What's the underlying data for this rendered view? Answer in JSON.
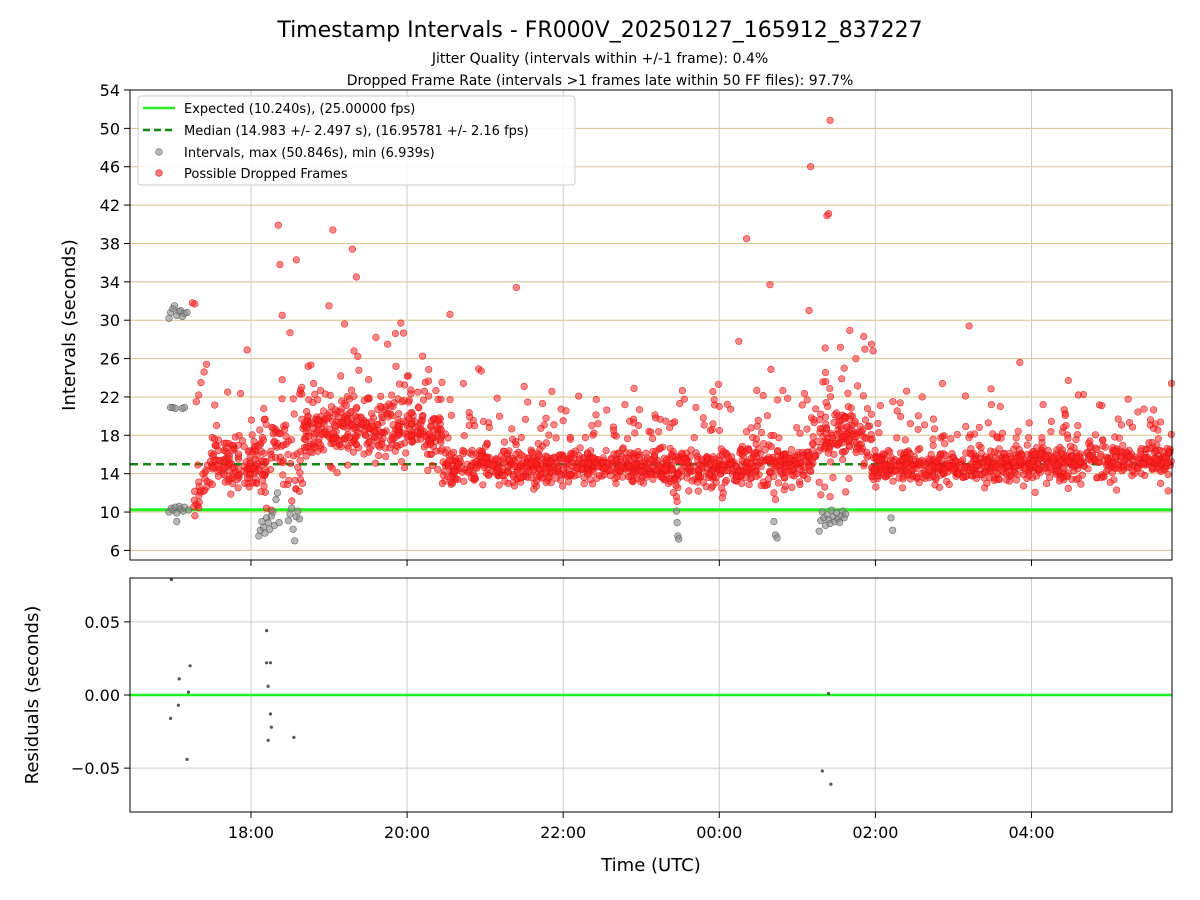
{
  "chart_data": [
    {
      "type": "scatter",
      "title": "Timestamp Intervals - FR000V_20250127_165912_837227",
      "subtitle_lines": [
        "Jitter Quality (intervals within +/-1 frame): 0.4%",
        "Dropped Frame Rate (intervals >1 frames late within 50 FF files): 97.7%"
      ],
      "ylabel": "Intervals (seconds)",
      "xlim_hours": [
        16.45,
        29.8
      ],
      "ylim": [
        5,
        54
      ],
      "yticks": [
        6,
        10,
        14,
        18,
        22,
        26,
        30,
        34,
        38,
        42,
        46,
        50,
        54
      ],
      "xticks_hours": [
        18,
        20,
        22,
        24,
        26,
        28
      ],
      "grid": true,
      "legend_position": "top-left",
      "colors": {
        "expected": "#22ee22",
        "median": "#118811",
        "intervals": "#888888",
        "dropped": "#ff2222",
        "hgrid": "#d9c48a",
        "vgrid": "#cccccc"
      },
      "expected_line": {
        "y": 10.24,
        "legend": "Expected (10.240s), (25.00000 fps)"
      },
      "median_line": {
        "y": 14.983,
        "legend": "Median (14.983 +/- 2.497 s), (16.95781 +/- 2.16 fps)"
      },
      "series": [
        {
          "name": "Intervals, max (50.846s), min (6.939s)",
          "points": [
            [
              16.95,
              30.2
            ],
            [
              16.97,
              30.8
            ],
            [
              17.0,
              31.2
            ],
            [
              17.02,
              31.5
            ],
            [
              17.05,
              30.5
            ],
            [
              17.08,
              30.9
            ],
            [
              17.1,
              31.0
            ],
            [
              17.12,
              30.4
            ],
            [
              17.15,
              30.7
            ],
            [
              17.18,
              30.8
            ],
            [
              16.97,
              20.9
            ],
            [
              17.0,
              20.9
            ],
            [
              17.03,
              20.8
            ],
            [
              17.12,
              20.8
            ],
            [
              17.15,
              20.9
            ],
            [
              16.95,
              10.0
            ],
            [
              16.98,
              10.4
            ],
            [
              17.0,
              10.2
            ],
            [
              17.03,
              10.5
            ],
            [
              17.05,
              9.9
            ],
            [
              17.08,
              10.6
            ],
            [
              17.1,
              10.3
            ],
            [
              17.13,
              10.1
            ],
            [
              17.15,
              10.5
            ],
            [
              17.2,
              10.2
            ],
            [
              17.05,
              9.0
            ],
            [
              18.1,
              7.5
            ],
            [
              18.12,
              8.1
            ],
            [
              18.14,
              9.0
            ],
            [
              18.16,
              8.4
            ],
            [
              18.18,
              7.8
            ],
            [
              18.2,
              9.4
            ],
            [
              18.22,
              8.9
            ],
            [
              18.24,
              8.2
            ],
            [
              18.26,
              9.6
            ],
            [
              18.28,
              10.0
            ],
            [
              18.3,
              8.6
            ],
            [
              18.32,
              11.3
            ],
            [
              18.34,
              12.0
            ],
            [
              18.36,
              8.9
            ],
            [
              18.48,
              9.1
            ],
            [
              18.5,
              9.8
            ],
            [
              18.52,
              10.4
            ],
            [
              18.54,
              8.2
            ],
            [
              18.56,
              7.0
            ],
            [
              18.58,
              9.5
            ],
            [
              18.6,
              10.1
            ],
            [
              18.62,
              9.3
            ],
            [
              23.45,
              10.1
            ],
            [
              23.46,
              8.9
            ],
            [
              23.47,
              7.5
            ],
            [
              23.48,
              7.2
            ],
            [
              24.7,
              9.0
            ],
            [
              24.72,
              7.6
            ],
            [
              24.74,
              7.3
            ],
            [
              25.28,
              8.0
            ],
            [
              25.3,
              9.1
            ],
            [
              25.32,
              10.0
            ],
            [
              25.34,
              9.4
            ],
            [
              25.36,
              8.6
            ],
            [
              25.38,
              9.7
            ],
            [
              25.4,
              9.2
            ],
            [
              25.42,
              8.8
            ],
            [
              25.44,
              10.2
            ],
            [
              25.46,
              9.5
            ],
            [
              25.48,
              9.0
            ],
            [
              25.5,
              9.9
            ],
            [
              25.52,
              9.3
            ],
            [
              25.54,
              8.9
            ],
            [
              25.56,
              9.6
            ],
            [
              25.58,
              10.1
            ],
            [
              25.6,
              9.4
            ],
            [
              25.62,
              9.8
            ],
            [
              26.2,
              9.4
            ],
            [
              26.22,
              8.1
            ]
          ]
        },
        {
          "name": "Possible Dropped Frames",
          "bands": [
            [
              17.25,
              17.35,
              10.3,
              12.5,
              1.0,
              12
            ],
            [
              17.35,
              17.5,
              12.5,
              15.0,
              1.0,
              14
            ],
            [
              17.5,
              18.2,
              15.0,
              15.0,
              1.3,
              140
            ],
            [
              18.25,
              18.45,
              17.5,
              17.5,
              2.0,
              30
            ],
            [
              18.45,
              18.65,
              15.5,
              15.5,
              2.5,
              20
            ],
            [
              18.65,
              19.4,
              18.2,
              18.6,
              1.5,
              160
            ],
            [
              19.4,
              20.0,
              18.6,
              18.2,
              1.4,
              110
            ],
            [
              20.0,
              20.45,
              18.4,
              17.8,
              1.3,
              90
            ],
            [
              20.45,
              22.0,
              14.8,
              14.8,
              1.0,
              300
            ],
            [
              22.0,
              24.0,
              14.8,
              14.5,
              0.9,
              380
            ],
            [
              24.0,
              25.2,
              14.8,
              15.0,
              1.0,
              240
            ],
            [
              25.2,
              25.6,
              17.5,
              17.8,
              1.4,
              70
            ],
            [
              25.6,
              25.95,
              18.5,
              17.6,
              1.3,
              60
            ],
            [
              25.95,
              27.5,
              14.8,
              14.6,
              0.9,
              320
            ],
            [
              27.5,
              29.8,
              15.0,
              15.4,
              0.9,
              460
            ]
          ],
          "scatter_count": 260,
          "points": [
            [
              17.25,
              31.8
            ],
            [
              17.28,
              31.7
            ],
            [
              17.3,
              21.5
            ],
            [
              17.33,
              22.2
            ],
            [
              17.36,
              23.5
            ],
            [
              17.4,
              24.6
            ],
            [
              17.43,
              25.4
            ],
            [
              17.7,
              22.5
            ],
            [
              17.95,
              26.9
            ],
            [
              18.35,
              39.9
            ],
            [
              18.37,
              35.8
            ],
            [
              18.4,
              30.5
            ],
            [
              18.5,
              28.7
            ],
            [
              18.58,
              36.3
            ],
            [
              18.65,
              23.0
            ],
            [
              19.0,
              31.5
            ],
            [
              19.05,
              39.4
            ],
            [
              19.2,
              29.6
            ],
            [
              19.3,
              37.4
            ],
            [
              19.35,
              34.5
            ],
            [
              19.32,
              26.8
            ],
            [
              19.6,
              28.2
            ],
            [
              19.75,
              27.5
            ],
            [
              19.85,
              28.6
            ],
            [
              19.92,
              29.7
            ],
            [
              20.55,
              30.6
            ],
            [
              20.95,
              24.7
            ],
            [
              21.4,
              33.4
            ],
            [
              21.5,
              23.1
            ],
            [
              23.7,
              20.9
            ],
            [
              24.0,
              21.0
            ],
            [
              24.25,
              27.8
            ],
            [
              24.35,
              38.5
            ],
            [
              24.65,
              33.7
            ],
            [
              25.15,
              31.0
            ],
            [
              25.17,
              46.0
            ],
            [
              25.38,
              40.9
            ],
            [
              25.4,
              41.1
            ],
            [
              25.42,
              50.846
            ],
            [
              25.6,
              25.0
            ],
            [
              25.75,
              26.0
            ],
            [
              25.85,
              28.3
            ],
            [
              25.95,
              27.5
            ],
            [
              25.97,
              26.8
            ],
            [
              26.4,
              22.6
            ],
            [
              26.6,
              22.0
            ],
            [
              27.2,
              29.4
            ],
            [
              27.6,
              21.0
            ],
            [
              27.85,
              25.6
            ],
            [
              28.6,
              22.2
            ],
            [
              28.9,
              21.1
            ],
            [
              17.32,
              14.9
            ],
            [
              18.2,
              10.4
            ],
            [
              18.26,
              10.2
            ],
            [
              23.45,
              11.6
            ],
            [
              23.46,
              11.1
            ],
            [
              24.7,
              12.0
            ],
            [
              24.72,
              11.3
            ],
            [
              25.28,
              13.1
            ],
            [
              25.3,
              11.8
            ],
            [
              25.35,
              12.6
            ],
            [
              25.42,
              11.6
            ],
            [
              25.62,
              12.1
            ],
            [
              25.66,
              13.5
            ],
            [
              29.75,
              12.2
            ]
          ]
        }
      ],
      "legend": {
        "expected": "Expected (10.240s), (25.00000 fps)",
        "median": "Median (14.983 +/- 2.497 s), (16.95781 +/- 2.16 fps)",
        "intervals": "Intervals, max (50.846s), min (6.939s)",
        "dropped": "Possible Dropped Frames"
      }
    },
    {
      "type": "scatter",
      "title": "",
      "xlabel": "Time (UTC)",
      "ylabel": "Residuals (seconds)",
      "xlim_hours": [
        16.45,
        29.8
      ],
      "ylim": [
        -0.08,
        0.08
      ],
      "yticks": [
        -0.05,
        0.0,
        0.05
      ],
      "ytick_labels": [
        "−0.05",
        "0.00",
        "0.05"
      ],
      "xticks_hours": [
        18,
        20,
        22,
        24,
        26,
        28
      ],
      "xtick_labels": [
        "18:00",
        "20:00",
        "22:00",
        "00:00",
        "02:00",
        "04:00"
      ],
      "grid": true,
      "zero_line_color": "#22ee22",
      "series": [
        {
          "name": "",
          "points": [
            [
              16.98,
              0.079
            ],
            [
              16.97,
              -0.016
            ],
            [
              17.08,
              0.011
            ],
            [
              17.07,
              -0.007
            ],
            [
              17.2,
              0.002
            ],
            [
              17.22,
              0.02
            ],
            [
              17.18,
              -0.044
            ],
            [
              18.2,
              0.044
            ],
            [
              18.2,
              0.022
            ],
            [
              18.25,
              0.022
            ],
            [
              18.22,
              0.006
            ],
            [
              18.25,
              -0.013
            ],
            [
              18.26,
              -0.022
            ],
            [
              18.22,
              -0.031
            ],
            [
              18.55,
              -0.029
            ],
            [
              25.4,
              0.001
            ],
            [
              25.32,
              -0.052
            ],
            [
              25.43,
              -0.061
            ]
          ]
        }
      ]
    }
  ]
}
